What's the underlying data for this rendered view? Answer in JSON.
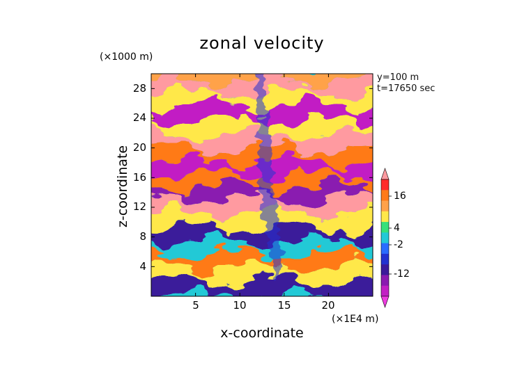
{
  "chart_data": {
    "type": "heatmap",
    "title": "zonal velocity",
    "xlabel": "x-coordinate",
    "ylabel": "z-coordinate",
    "x_unit": "(×1E4 m)",
    "y_unit": "(×1000 m)",
    "annotations": [
      "y=100 m",
      "t=17650 sec"
    ],
    "xlim": [
      0,
      25
    ],
    "ylim": [
      0,
      30
    ],
    "x_ticks": [
      5,
      10,
      15,
      20
    ],
    "y_ticks": [
      4,
      8,
      12,
      16,
      20,
      24,
      28
    ],
    "colorbar": {
      "labels": [
        16,
        4,
        -2,
        -12
      ],
      "colors": [
        "#ff9aa0",
        "#ff2a2a",
        "#ff7a18",
        "#ffa24a",
        "#ffe84a",
        "#36e07a",
        "#23c9d6",
        "#2a6cff",
        "#2232d0",
        "#3a1a9a",
        "#8a1ab0",
        "#c21fc4",
        "#ee3ce0"
      ]
    },
    "bands": [
      {
        "z": 1.2,
        "u": -12
      },
      {
        "z": 3.0,
        "u": 4
      },
      {
        "z": 5.0,
        "u": 10
      },
      {
        "z": 6.6,
        "u": -2
      },
      {
        "z": 8.2,
        "u": -12
      },
      {
        "z": 10.2,
        "u": 4
      },
      {
        "z": 12.3,
        "u": 18
      },
      {
        "z": 14.0,
        "u": -14
      },
      {
        "z": 15.6,
        "u": 8
      },
      {
        "z": 17.3,
        "u": -16
      },
      {
        "z": 19.0,
        "u": 10
      },
      {
        "z": 20.8,
        "u": 18
      },
      {
        "z": 22.6,
        "u": 4
      },
      {
        "z": 24.8,
        "u": -16
      },
      {
        "z": 26.6,
        "u": 2
      },
      {
        "z": 28.4,
        "u": 18
      },
      {
        "z": 29.8,
        "u": 6
      }
    ]
  }
}
